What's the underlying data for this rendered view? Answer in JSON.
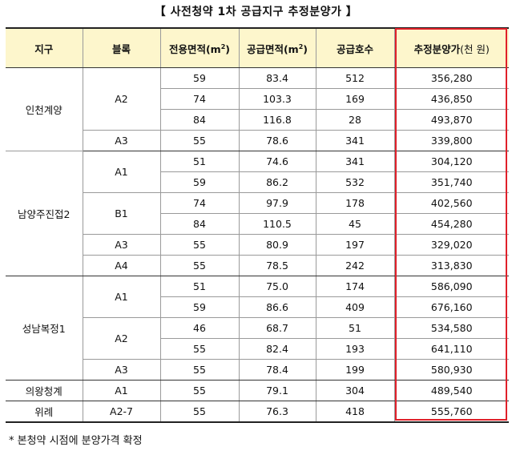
{
  "title": "【 사전청약 1차 공급지구 추정분양가 】",
  "headers": {
    "district": "지구",
    "block": "블록",
    "exclusive_area": "전용면적(m",
    "supply_area": "공급면적(m",
    "units": "공급호수",
    "estimated_price": "추정분양가",
    "estimated_price_unit": "(천 원)",
    "sup": "2",
    "close_paren": ")"
  },
  "rows": [
    {
      "district": "인천계양",
      "block": "A2",
      "exclusive": "59",
      "supply": "83.4",
      "units": "512",
      "price": "356,280"
    },
    {
      "district": "",
      "block": "",
      "exclusive": "74",
      "supply": "103.3",
      "units": "169",
      "price": "436,850"
    },
    {
      "district": "",
      "block": "",
      "exclusive": "84",
      "supply": "116.8",
      "units": "28",
      "price": "493,870"
    },
    {
      "district": "",
      "block": "A3",
      "exclusive": "55",
      "supply": "78.6",
      "units": "341",
      "price": "339,800"
    },
    {
      "district": "남양주진접2",
      "block": "A1",
      "exclusive": "51",
      "supply": "74.6",
      "units": "341",
      "price": "304,120"
    },
    {
      "district": "",
      "block": "",
      "exclusive": "59",
      "supply": "86.2",
      "units": "532",
      "price": "351,740"
    },
    {
      "district": "",
      "block": "B1",
      "exclusive": "74",
      "supply": "97.9",
      "units": "178",
      "price": "402,560"
    },
    {
      "district": "",
      "block": "",
      "exclusive": "84",
      "supply": "110.5",
      "units": "45",
      "price": "454,280"
    },
    {
      "district": "",
      "block": "A3",
      "exclusive": "55",
      "supply": "80.9",
      "units": "197",
      "price": "329,020"
    },
    {
      "district": "",
      "block": "A4",
      "exclusive": "55",
      "supply": "78.5",
      "units": "242",
      "price": "313,830"
    },
    {
      "district": "성남복정1",
      "block": "A1",
      "exclusive": "51",
      "supply": "75.0",
      "units": "174",
      "price": "586,090"
    },
    {
      "district": "",
      "block": "",
      "exclusive": "59",
      "supply": "86.6",
      "units": "409",
      "price": "676,160"
    },
    {
      "district": "",
      "block": "A2",
      "exclusive": "46",
      "supply": "68.7",
      "units": "51",
      "price": "534,580"
    },
    {
      "district": "",
      "block": "",
      "exclusive": "55",
      "supply": "82.4",
      "units": "193",
      "price": "641,110"
    },
    {
      "district": "",
      "block": "A3",
      "exclusive": "55",
      "supply": "78.4",
      "units": "199",
      "price": "580,930"
    },
    {
      "district": "의왕청계",
      "block": "A1",
      "exclusive": "55",
      "supply": "79.1",
      "units": "304",
      "price": "489,540"
    },
    {
      "district": "위례",
      "block": "A2-7",
      "exclusive": "55",
      "supply": "76.3",
      "units": "418",
      "price": "555,760"
    }
  ],
  "note": "* 본청약 시점에 분양가격 확정",
  "highlight_color": "#e0202a",
  "header_bg": "#fdf6cc"
}
